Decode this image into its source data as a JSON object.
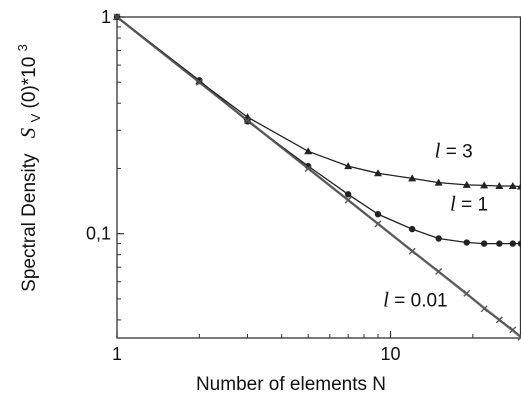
{
  "chart_data": {
    "type": "line",
    "xlabel": "Number of elements   N",
    "ylabel_prefix": "Spectral Density",
    "ylabel_symbol": "S",
    "ylabel_subscript": "V",
    "ylabel_suffix": "(0)*10",
    "ylabel_power": "3",
    "x_scale": "log",
    "y_scale": "log",
    "xlim": [
      1,
      30
    ],
    "ylim": [
      0.033,
      1
    ],
    "x_ticks": [
      {
        "value": 1,
        "label": "1"
      },
      {
        "value": 10,
        "label": "10"
      }
    ],
    "y_ticks": [
      {
        "value": 1,
        "label": "1"
      },
      {
        "value": 0.1,
        "label": "0,1"
      }
    ],
    "grid": false,
    "series": [
      {
        "marker": "none",
        "color": "#7a7a7a",
        "x": [
          1,
          30
        ],
        "y": [
          1,
          0.0333
        ]
      },
      {
        "marker": "triangle",
        "color": "#222222",
        "x": [
          1,
          2,
          3,
          5,
          7,
          9,
          12,
          15,
          19,
          22,
          25,
          28,
          30
        ],
        "y": [
          1,
          0.505,
          0.345,
          0.24,
          0.205,
          0.19,
          0.18,
          0.172,
          0.168,
          0.167,
          0.166,
          0.166,
          0.165
        ]
      },
      {
        "marker": "circle",
        "color": "#222222",
        "x": [
          1,
          2,
          3,
          5,
          7,
          9,
          12,
          15,
          19,
          22,
          25,
          28,
          30
        ],
        "y": [
          1,
          0.51,
          0.33,
          0.205,
          0.152,
          0.123,
          0.105,
          0.095,
          0.091,
          0.09,
          0.09,
          0.09,
          0.09
        ]
      },
      {
        "marker": "cross",
        "color": "#555555",
        "x": [
          1,
          2,
          3,
          5,
          7,
          9,
          12,
          15,
          19,
          22,
          25,
          28,
          30
        ],
        "y": [
          1,
          0.5,
          0.333,
          0.2,
          0.143,
          0.111,
          0.083,
          0.067,
          0.053,
          0.045,
          0.04,
          0.036,
          0.0333
        ]
      }
    ],
    "annotations": [
      {
        "symbol": "l",
        "text": " = 3",
        "x": 14.5,
        "y": 0.225
      },
      {
        "symbol": "l",
        "text": " = 1",
        "x": 16.5,
        "y": 0.128
      },
      {
        "symbol": "l",
        "text": " = 0.01",
        "x": 9.4,
        "y": 0.046
      }
    ]
  }
}
